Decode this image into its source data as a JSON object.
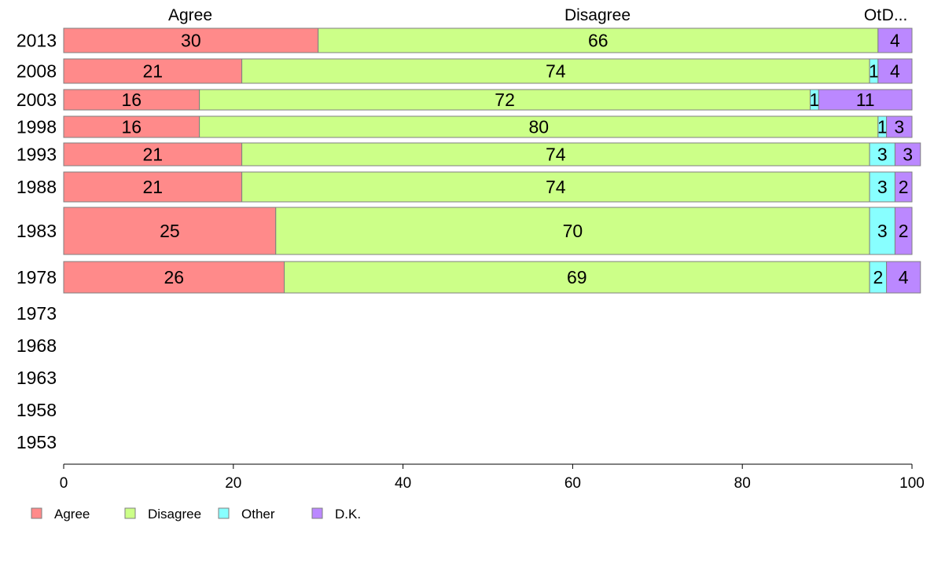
{
  "chart_data": {
    "type": "bar",
    "orientation": "horizontal",
    "stacked": true,
    "categories": [
      "2013",
      "2008",
      "2003",
      "1998",
      "1993",
      "1988",
      "1983",
      "1978",
      "1973",
      "1968",
      "1963",
      "1958",
      "1953"
    ],
    "series": [
      {
        "name": "Agree",
        "color": "#ff8a8a",
        "values": [
          30,
          21,
          16,
          16,
          21,
          21,
          25,
          26,
          null,
          null,
          null,
          null,
          null
        ],
        "shown": [
          30,
          21,
          16,
          16,
          21,
          21,
          25,
          26,
          null,
          null,
          null,
          null,
          null
        ]
      },
      {
        "name": "Disagree",
        "color": "#ccff88",
        "values": [
          66,
          74,
          72,
          80,
          74,
          74,
          70,
          69,
          null,
          null,
          null,
          null,
          null
        ],
        "shown": [
          66,
          74,
          72,
          80,
          74,
          74,
          70,
          69,
          null,
          null,
          null,
          null,
          null
        ]
      },
      {
        "name": "Other",
        "color": "#88ffff",
        "values": [
          0,
          1,
          1,
          1,
          3,
          3,
          3,
          2,
          null,
          null,
          null,
          null,
          null
        ],
        "shown": [
          null,
          1,
          1,
          1,
          3,
          3,
          3,
          2,
          null,
          null,
          null,
          null,
          null
        ]
      },
      {
        "name": "D.K.",
        "color": "#bb88ff",
        "values": [
          4,
          4,
          11,
          3,
          3,
          2,
          2,
          4,
          null,
          null,
          null,
          null,
          null
        ],
        "shown": [
          4,
          4,
          11,
          3,
          3,
          2,
          2,
          4,
          null,
          null,
          null,
          null,
          null
        ]
      }
    ],
    "column_headers": [
      "Agree",
      "Disagree",
      "Ot",
      "D..."
    ],
    "xlim": [
      0,
      100
    ],
    "xticks": [
      0,
      20,
      40,
      60,
      80,
      100
    ],
    "legend_position": "bottom-left",
    "grid": false
  }
}
